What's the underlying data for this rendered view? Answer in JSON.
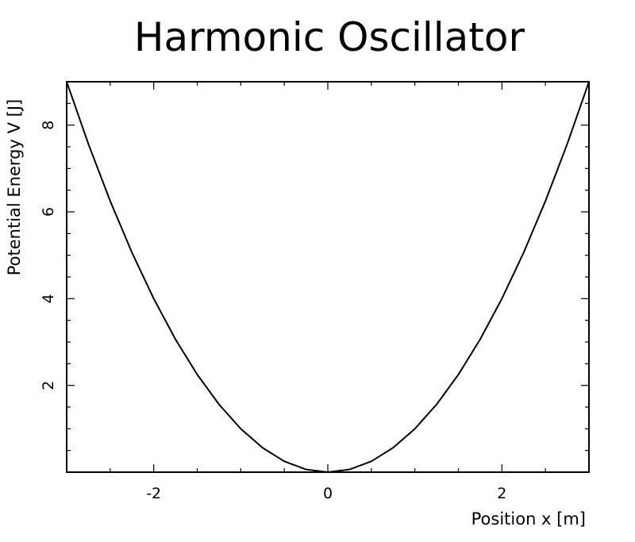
{
  "chart_data": {
    "type": "line",
    "title": "Harmonic Oscillator",
    "xlabel": "Position x [m]",
    "ylabel": "Potential Energy V [J]",
    "xlim": [
      -3,
      3
    ],
    "ylim": [
      0,
      9
    ],
    "xticks": [
      -2,
      0,
      2
    ],
    "yticks": [
      2,
      4,
      6,
      8
    ],
    "grid": false,
    "legend": "none",
    "series": [
      {
        "x": [
          -3,
          -2.75,
          -2.5,
          -2.25,
          -2,
          -1.75,
          -1.5,
          -1.25,
          -1,
          -0.75,
          -0.5,
          -0.25,
          0,
          0.25,
          0.5,
          0.75,
          1,
          1.25,
          1.5,
          1.75,
          2,
          2.25,
          2.5,
          2.75,
          3
        ],
        "values": [
          9,
          7.5625,
          6.25,
          5.0625,
          4,
          3.0625,
          2.25,
          1.5625,
          1,
          0.5625,
          0.25,
          0.0625,
          0,
          0.0625,
          0.25,
          0.5625,
          1,
          1.5625,
          2.25,
          3.0625,
          4,
          5.0625,
          6.25,
          7.5625,
          9
        ],
        "color": "#000000"
      }
    ]
  }
}
